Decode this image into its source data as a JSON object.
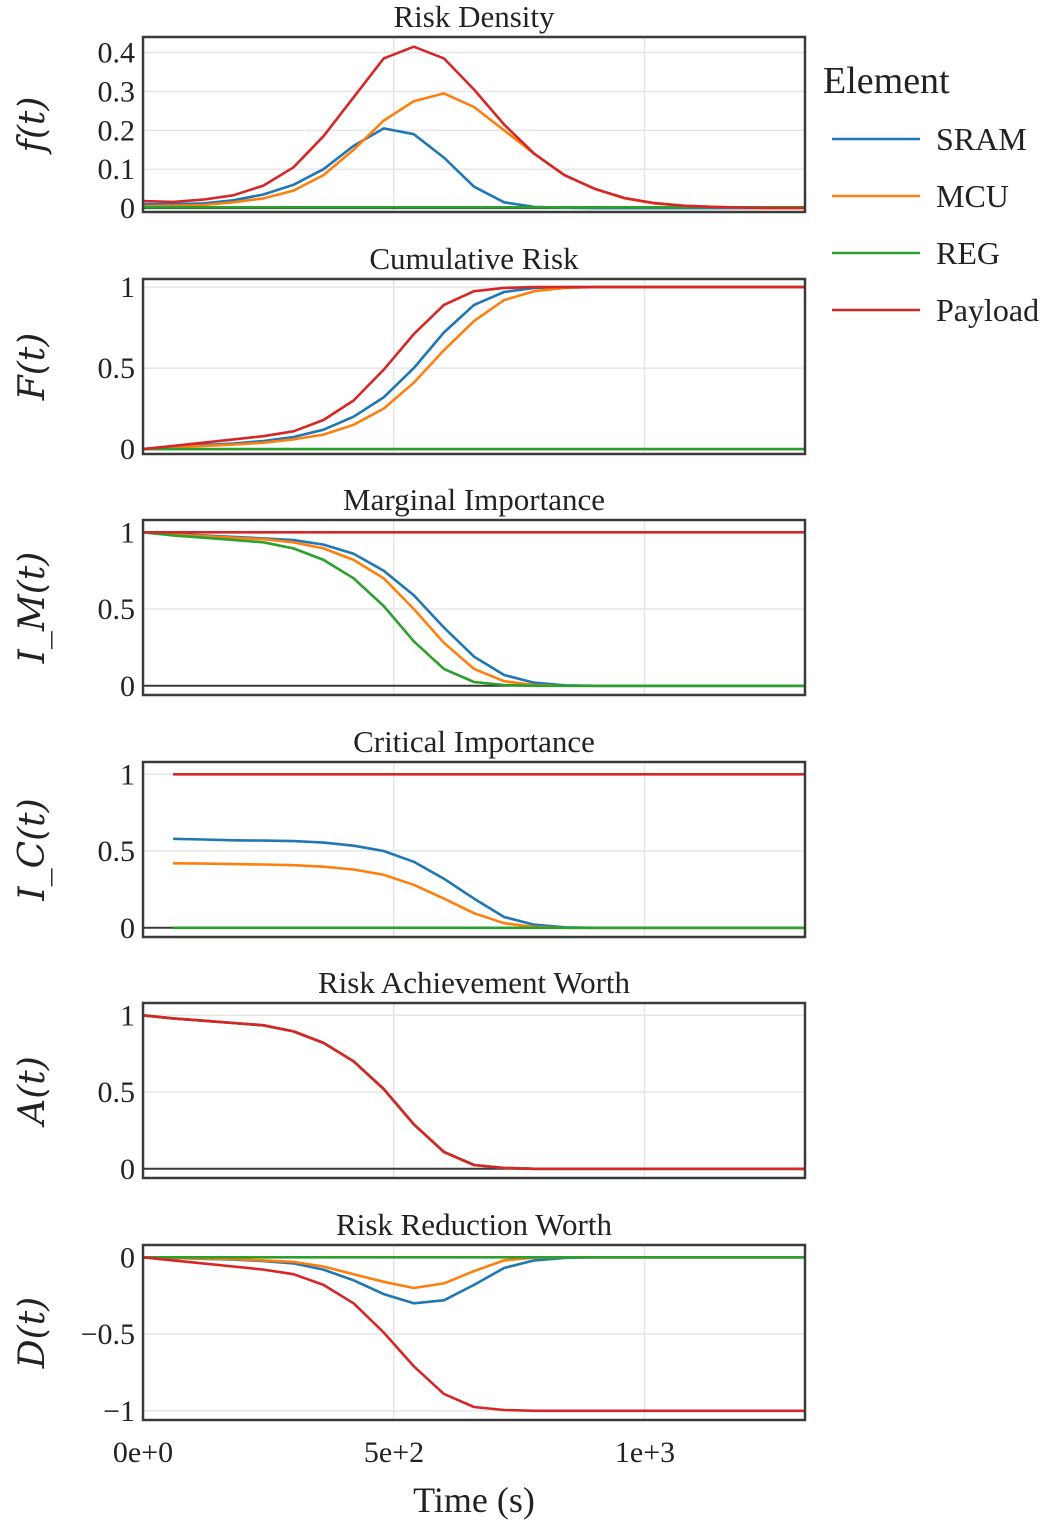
{
  "chart_data": [
    {
      "type": "line",
      "title": "Risk Density",
      "ylabel": "f(t)",
      "ylim": [
        -0.01,
        0.44
      ],
      "yticks": [
        0,
        0.1,
        0.2,
        0.3,
        0.4
      ],
      "ytick_labels": [
        "0",
        "0.1",
        "0.2",
        "0.3",
        "0.4"
      ],
      "x": [
        0,
        60,
        120,
        180,
        240,
        300,
        360,
        420,
        480,
        540,
        600,
        660,
        720,
        780,
        840,
        900,
        960,
        1020,
        1080,
        1140,
        1200,
        1260,
        1320
      ],
      "series": [
        {
          "name": "SRAM",
          "values": [
            0.01,
            0.01,
            0.012,
            0.02,
            0.035,
            0.06,
            0.1,
            0.16,
            0.205,
            0.19,
            0.13,
            0.055,
            0.015,
            0.003,
            0.001,
            0,
            0,
            0,
            0,
            0,
            0,
            0,
            0
          ]
        },
        {
          "name": "MCU",
          "values": [
            0.005,
            0.006,
            0.008,
            0.015,
            0.025,
            0.045,
            0.085,
            0.15,
            0.225,
            0.275,
            0.295,
            0.26,
            0.2,
            0.14,
            0.085,
            0.05,
            0.025,
            0.012,
            0.006,
            0.003,
            0.001,
            0,
            0
          ]
        },
        {
          "name": "REG",
          "values": [
            0.002,
            0.002,
            0.002,
            0.002,
            0.002,
            0.002,
            0.002,
            0.002,
            0.002,
            0.002,
            0.002,
            0.002,
            0.002,
            0.002,
            0.002,
            0.002,
            0.002,
            0.002,
            0.002,
            0.002,
            0.002,
            0.002,
            0.002
          ]
        },
        {
          "name": "Payload",
          "values": [
            0.018,
            0.016,
            0.022,
            0.033,
            0.058,
            0.105,
            0.185,
            0.285,
            0.385,
            0.415,
            0.385,
            0.305,
            0.215,
            0.14,
            0.085,
            0.05,
            0.026,
            0.013,
            0.006,
            0.003,
            0.001,
            0,
            0
          ]
        }
      ]
    },
    {
      "type": "line",
      "title": "Cumulative Risk",
      "ylabel": "F(t)",
      "ylim": [
        -0.03,
        1.05
      ],
      "yticks": [
        0,
        0.5,
        1
      ],
      "ytick_labels": [
        "0",
        "0.5",
        "1"
      ],
      "x": [
        0,
        60,
        120,
        180,
        240,
        300,
        360,
        420,
        480,
        540,
        600,
        660,
        720,
        780,
        840,
        900,
        960,
        1020,
        1080,
        1140,
        1200,
        1260,
        1320
      ],
      "series": [
        {
          "name": "SRAM",
          "values": [
            0,
            0.015,
            0.025,
            0.035,
            0.05,
            0.075,
            0.12,
            0.2,
            0.32,
            0.5,
            0.72,
            0.89,
            0.97,
            0.995,
            1,
            1,
            1,
            1,
            1,
            1,
            1,
            1,
            1
          ]
        },
        {
          "name": "MCU",
          "values": [
            0,
            0.012,
            0.02,
            0.028,
            0.04,
            0.06,
            0.09,
            0.15,
            0.25,
            0.41,
            0.61,
            0.79,
            0.92,
            0.975,
            0.995,
            1,
            1,
            1,
            1,
            1,
            1,
            1,
            1
          ]
        },
        {
          "name": "REG",
          "values": [
            0,
            0,
            0,
            0,
            0,
            0,
            0,
            0,
            0,
            0,
            0,
            0,
            0,
            0,
            0,
            0,
            0,
            0,
            0,
            0,
            0,
            0,
            0
          ]
        },
        {
          "name": "Payload",
          "values": [
            0,
            0.02,
            0.04,
            0.06,
            0.08,
            0.11,
            0.18,
            0.3,
            0.49,
            0.71,
            0.89,
            0.975,
            0.995,
            1,
            1,
            1,
            1,
            1,
            1,
            1,
            1,
            1,
            1
          ]
        }
      ]
    },
    {
      "type": "line",
      "title": "Marginal Importance",
      "ylabel": "I_M(t)",
      "ylim": [
        -0.06,
        1.08
      ],
      "yticks": [
        0,
        0.5,
        1
      ],
      "ytick_labels": [
        "0",
        "0.5",
        "1"
      ],
      "x": [
        0,
        60,
        120,
        180,
        240,
        300,
        360,
        420,
        480,
        540,
        600,
        660,
        720,
        780,
        840,
        900,
        960,
        1020,
        1080,
        1140,
        1200,
        1260,
        1320
      ],
      "series": [
        {
          "name": "SRAM",
          "values": [
            1,
            0.99,
            0.98,
            0.97,
            0.96,
            0.95,
            0.92,
            0.86,
            0.75,
            0.59,
            0.38,
            0.19,
            0.07,
            0.02,
            0.003,
            0,
            0,
            0,
            0,
            0,
            0,
            0,
            0
          ]
        },
        {
          "name": "MCU",
          "values": [
            1,
            0.985,
            0.975,
            0.965,
            0.955,
            0.935,
            0.895,
            0.82,
            0.7,
            0.5,
            0.28,
            0.11,
            0.03,
            0.005,
            0,
            0,
            0,
            0,
            0,
            0,
            0,
            0,
            0
          ]
        },
        {
          "name": "REG",
          "values": [
            1,
            0.98,
            0.965,
            0.95,
            0.935,
            0.895,
            0.82,
            0.7,
            0.52,
            0.29,
            0.11,
            0.025,
            0.005,
            0,
            0,
            0,
            0,
            0,
            0,
            0,
            0,
            0,
            0
          ]
        },
        {
          "name": "Payload",
          "values": [
            1,
            1,
            1,
            1,
            1,
            1,
            1,
            1,
            1,
            1,
            1,
            1,
            1,
            1,
            1,
            1,
            1,
            1,
            1,
            1,
            1,
            1,
            1
          ]
        }
      ]
    },
    {
      "type": "line",
      "title": "Critical Importance",
      "ylabel": "I_C(t)",
      "ylim": [
        -0.06,
        1.08
      ],
      "yticks": [
        0,
        0.5,
        1
      ],
      "ytick_labels": [
        "0",
        "0.5",
        "1"
      ],
      "x": [
        60,
        120,
        180,
        240,
        300,
        360,
        420,
        480,
        540,
        600,
        660,
        720,
        780,
        840,
        900,
        960,
        1020,
        1080,
        1140,
        1200,
        1260,
        1320
      ],
      "series": [
        {
          "name": "SRAM",
          "values": [
            0.58,
            0.575,
            0.57,
            0.568,
            0.565,
            0.555,
            0.535,
            0.5,
            0.43,
            0.32,
            0.19,
            0.07,
            0.02,
            0.003,
            0,
            0,
            0,
            0,
            0,
            0,
            0,
            0
          ]
        },
        {
          "name": "MCU",
          "values": [
            0.42,
            0.418,
            0.415,
            0.412,
            0.408,
            0.398,
            0.38,
            0.345,
            0.28,
            0.19,
            0.095,
            0.03,
            0.006,
            0,
            0,
            0,
            0,
            0,
            0,
            0,
            0,
            0
          ]
        },
        {
          "name": "REG",
          "values": [
            0,
            0,
            0,
            0,
            0,
            0,
            0,
            0,
            0,
            0,
            0,
            0,
            0,
            0,
            0,
            0,
            0,
            0,
            0,
            0,
            0,
            0
          ]
        },
        {
          "name": "Payload",
          "values": [
            1,
            1,
            1,
            1,
            1,
            1,
            1,
            1,
            1,
            1,
            1,
            1,
            1,
            1,
            1,
            1,
            1,
            1,
            1,
            1,
            1,
            1
          ]
        }
      ]
    },
    {
      "type": "line",
      "title": "Risk Achievement Worth",
      "ylabel": "A(t)",
      "ylim": [
        -0.06,
        1.08
      ],
      "yticks": [
        0,
        0.5,
        1
      ],
      "ytick_labels": [
        "0",
        "0.5",
        "1"
      ],
      "x": [
        0,
        60,
        120,
        180,
        240,
        300,
        360,
        420,
        480,
        540,
        600,
        660,
        720,
        780,
        840,
        900,
        960,
        1020,
        1080,
        1140,
        1200,
        1260,
        1320
      ],
      "series": [
        {
          "name": "SRAM",
          "values": [
            1,
            0.98,
            0.965,
            0.95,
            0.935,
            0.895,
            0.82,
            0.7,
            0.52,
            0.29,
            0.11,
            0.025,
            0.005,
            0,
            0,
            0,
            0,
            0,
            0,
            0,
            0,
            0,
            0
          ]
        },
        {
          "name": "MCU",
          "values": [
            1,
            0.98,
            0.965,
            0.95,
            0.935,
            0.895,
            0.82,
            0.7,
            0.52,
            0.29,
            0.11,
            0.025,
            0.005,
            0,
            0,
            0,
            0,
            0,
            0,
            0,
            0,
            0,
            0
          ]
        },
        {
          "name": "REG",
          "values": [
            1,
            0.98,
            0.965,
            0.95,
            0.935,
            0.895,
            0.82,
            0.7,
            0.52,
            0.29,
            0.11,
            0.025,
            0.005,
            0,
            0,
            0,
            0,
            0,
            0,
            0,
            0,
            0,
            0
          ]
        },
        {
          "name": "Payload",
          "values": [
            1,
            0.98,
            0.965,
            0.95,
            0.935,
            0.895,
            0.82,
            0.7,
            0.52,
            0.29,
            0.11,
            0.025,
            0.005,
            0,
            0,
            0,
            0,
            0,
            0,
            0,
            0,
            0,
            0
          ]
        }
      ]
    },
    {
      "type": "line",
      "title": "Risk Reduction Worth",
      "ylabel": "D(t)",
      "ylim": [
        -1.06,
        0.08
      ],
      "yticks": [
        0,
        -0.5,
        -1
      ],
      "ytick_labels": [
        "0",
        "−0.5",
        "−1"
      ],
      "xlabel": "Time (s)",
      "xticks": [
        0,
        500,
        1000
      ],
      "xtick_labels": [
        "0e+0",
        "5e+2",
        "1e+3"
      ],
      "x": [
        0,
        60,
        120,
        180,
        240,
        300,
        360,
        420,
        480,
        540,
        600,
        660,
        720,
        780,
        840,
        900,
        960,
        1020,
        1080,
        1140,
        1200,
        1260,
        1320
      ],
      "series": [
        {
          "name": "SRAM",
          "values": [
            0,
            -0.005,
            -0.01,
            -0.015,
            -0.025,
            -0.04,
            -0.08,
            -0.15,
            -0.24,
            -0.3,
            -0.28,
            -0.18,
            -0.07,
            -0.02,
            -0.005,
            0,
            0,
            0,
            0,
            0,
            0,
            0,
            0
          ]
        },
        {
          "name": "MCU",
          "values": [
            0,
            -0.004,
            -0.008,
            -0.012,
            -0.02,
            -0.03,
            -0.06,
            -0.11,
            -0.16,
            -0.2,
            -0.17,
            -0.09,
            -0.02,
            -0.003,
            0,
            0,
            0,
            0,
            0,
            0,
            0,
            0,
            0
          ]
        },
        {
          "name": "REG",
          "values": [
            0,
            0,
            0,
            0,
            0,
            0,
            0,
            0,
            0,
            0,
            0,
            0,
            0,
            0,
            0,
            0,
            0,
            0,
            0,
            0,
            0,
            0,
            0
          ]
        },
        {
          "name": "Payload",
          "values": [
            0,
            -0.02,
            -0.04,
            -0.06,
            -0.08,
            -0.11,
            -0.18,
            -0.3,
            -0.49,
            -0.71,
            -0.89,
            -0.975,
            -0.995,
            -1,
            -1,
            -1,
            -1,
            -1,
            -1,
            -1,
            -1,
            -1,
            -1
          ]
        }
      ]
    }
  ],
  "xlim": [
    0,
    1320
  ],
  "xticks": [
    0,
    500,
    1000
  ],
  "legend": {
    "title": "Element",
    "placement": "right",
    "items": [
      {
        "name": "SRAM",
        "color": "#1f77b4"
      },
      {
        "name": "MCU",
        "color": "#ff7f0e"
      },
      {
        "name": "REG",
        "color": "#2ca02c"
      },
      {
        "name": "Payload",
        "color": "#d62728"
      }
    ]
  },
  "colors": {
    "SRAM": "#1f77b4",
    "MCU": "#ff7f0e",
    "REG": "#2ca02c",
    "Payload": "#d62728"
  }
}
